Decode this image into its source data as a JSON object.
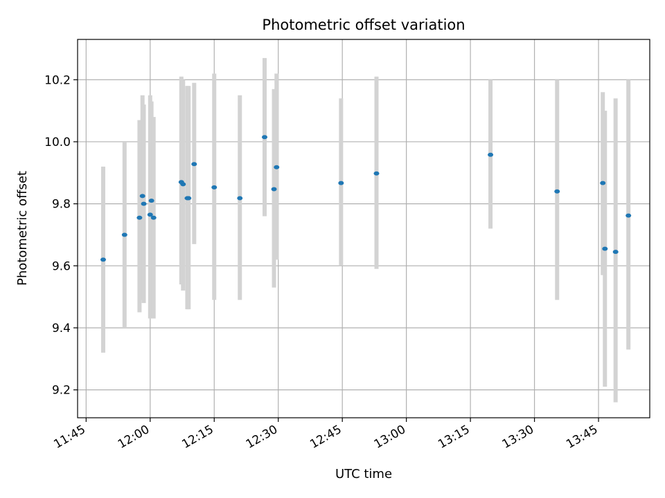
{
  "chart_data": {
    "type": "scatter",
    "title": "Photometric offset variation",
    "xlabel": "UTC time",
    "ylabel": "Photometric offset",
    "x_unit": "time of day (HH:MM)",
    "xlim": [
      "11:43",
      "13:57"
    ],
    "ylim": [
      9.11,
      10.33
    ],
    "x_ticks": [
      "11:45",
      "12:00",
      "12:15",
      "12:30",
      "12:45",
      "13:00",
      "13:15",
      "13:30",
      "13:45"
    ],
    "y_ticks": [
      "9.2",
      "9.4",
      "9.6",
      "9.8",
      "10.0",
      "10.2"
    ],
    "grid": true,
    "colors": {
      "points": "#1f77b4",
      "error_bars": "#d3d3d3",
      "grid": "#b0b0b0"
    },
    "series": [
      {
        "points": [
          {
            "x": "11:49",
            "y": 9.62,
            "ylow": 9.32,
            "yhigh": 9.92
          },
          {
            "x": "11:54",
            "y": 9.7,
            "ylow": 9.4,
            "yhigh": 10.0
          },
          {
            "x": "11:57.5",
            "y": 9.755,
            "ylow": 9.45,
            "yhigh": 10.07
          },
          {
            "x": "11:58.2",
            "y": 9.825,
            "ylow": 9.49,
            "yhigh": 10.15
          },
          {
            "x": "11:58.5",
            "y": 9.8,
            "ylow": 9.48,
            "yhigh": 10.12
          },
          {
            "x": "12:00",
            "y": 9.765,
            "ylow": 9.43,
            "yhigh": 10.15
          },
          {
            "x": "12:00.3",
            "y": 9.81,
            "ylow": 9.47,
            "yhigh": 10.13
          },
          {
            "x": "12:00.8",
            "y": 9.755,
            "ylow": 9.43,
            "yhigh": 10.08
          },
          {
            "x": "12:07.3",
            "y": 9.87,
            "ylow": 9.54,
            "yhigh": 10.21
          },
          {
            "x": "12:07.7",
            "y": 9.863,
            "ylow": 9.52,
            "yhigh": 10.2
          },
          {
            "x": "12:08.7",
            "y": 9.818,
            "ylow": 9.46,
            "yhigh": 10.18
          },
          {
            "x": "12:09",
            "y": 9.818,
            "ylow": 9.46,
            "yhigh": 10.18
          },
          {
            "x": "12:10.3",
            "y": 9.928,
            "ylow": 9.67,
            "yhigh": 10.19
          },
          {
            "x": "12:15",
            "y": 9.853,
            "ylow": 9.49,
            "yhigh": 10.22
          },
          {
            "x": "12:21",
            "y": 9.818,
            "ylow": 9.49,
            "yhigh": 10.15
          },
          {
            "x": "12:26.8",
            "y": 10.015,
            "ylow": 9.76,
            "yhigh": 10.27
          },
          {
            "x": "12:29",
            "y": 9.847,
            "ylow": 9.53,
            "yhigh": 10.17
          },
          {
            "x": "12:29.6",
            "y": 9.918,
            "ylow": 9.62,
            "yhigh": 10.22
          },
          {
            "x": "12:44.7",
            "y": 9.867,
            "ylow": 9.6,
            "yhigh": 10.14
          },
          {
            "x": "12:53",
            "y": 9.898,
            "ylow": 9.59,
            "yhigh": 10.21
          },
          {
            "x": "13:19.7",
            "y": 9.958,
            "ylow": 9.72,
            "yhigh": 10.2
          },
          {
            "x": "13:35.3",
            "y": 9.84,
            "ylow": 9.49,
            "yhigh": 10.2
          },
          {
            "x": "13:46",
            "y": 9.867,
            "ylow": 9.57,
            "yhigh": 10.16
          },
          {
            "x": "13:46.5",
            "y": 9.655,
            "ylow": 9.21,
            "yhigh": 10.1
          },
          {
            "x": "13:49",
            "y": 9.645,
            "ylow": 9.16,
            "yhigh": 10.14
          },
          {
            "x": "13:52",
            "y": 9.762,
            "ylow": 9.33,
            "yhigh": 10.2
          }
        ]
      }
    ]
  }
}
